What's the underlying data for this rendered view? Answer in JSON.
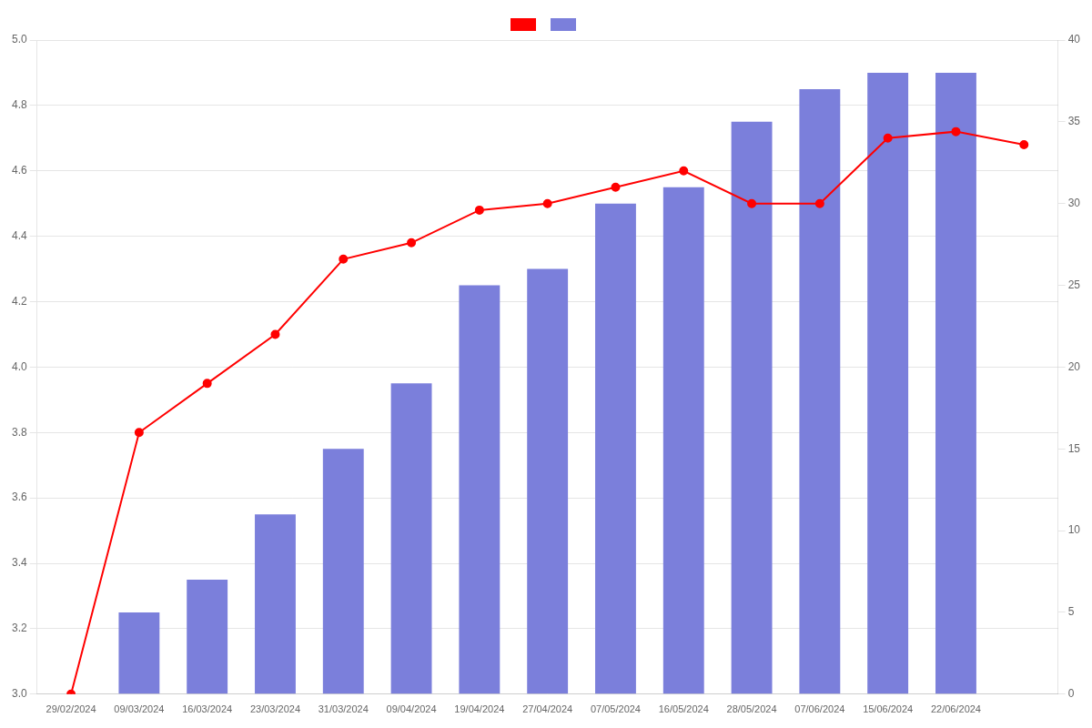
{
  "chart_data": {
    "type": "bar",
    "categories": [
      "29/02/2024",
      "09/03/2024",
      "16/03/2024",
      "23/03/2024",
      "31/03/2024",
      "09/04/2024",
      "19/04/2024",
      "27/04/2024",
      "07/05/2024",
      "16/05/2024",
      "28/05/2024",
      "07/06/2024",
      "15/06/2024",
      "22/06/2024",
      null
    ],
    "series": [
      {
        "type": "line",
        "color": "#FF0000",
        "marker": "circle",
        "values": [
          3.0,
          3.8,
          3.95,
          4.1,
          4.33,
          4.38,
          4.48,
          4.5,
          4.55,
          4.6,
          4.5,
          4.5,
          4.7,
          4.72,
          4.68
        ]
      },
      {
        "type": "bar",
        "color": "#7B7FDB",
        "axis": "y2",
        "values": [
          null,
          5,
          7,
          11,
          15,
          19,
          25,
          26,
          30,
          31,
          35,
          37,
          38,
          38,
          null
        ]
      }
    ],
    "ylim": [
      3.0,
      5.0
    ],
    "yticks": [
      {
        "value": 3.0,
        "label": "3.0"
      },
      3.2,
      3.4,
      3.6,
      3.8,
      {
        "value": 4.0,
        "label": "4.0"
      },
      4.2,
      4.4,
      4.6,
      4.8,
      {
        "value": 5.0,
        "label": "5.0"
      }
    ],
    "y2lim": [
      0,
      40
    ],
    "y2ticks": [
      0,
      5,
      10,
      15,
      20,
      25,
      30,
      35,
      40
    ],
    "grid": true,
    "legend": "top"
  }
}
